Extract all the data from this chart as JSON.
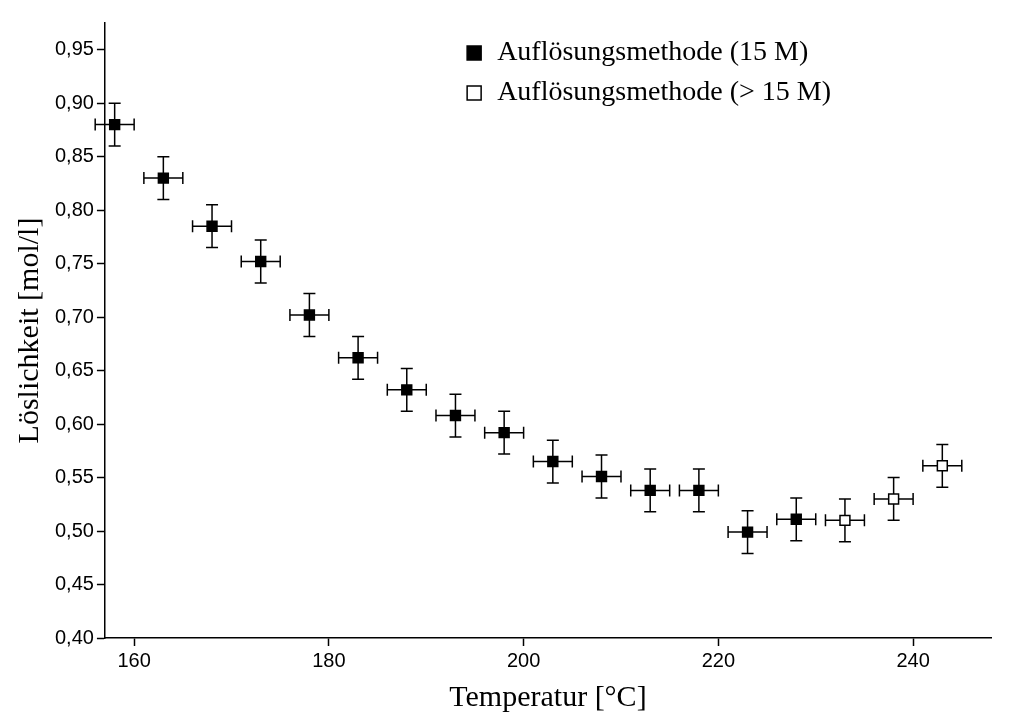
{
  "chart_data": {
    "type": "scatter",
    "xlabel": "Temperatur [°C]",
    "ylabel": "Löslichkeit [mol/l]",
    "xlim": [
      157,
      248
    ],
    "xticks": [
      160,
      180,
      200,
      220,
      240
    ],
    "ylim": [
      0.4,
      0.975
    ],
    "yticks": [
      {
        "value": 0.4,
        "label": "0,40"
      },
      {
        "value": 0.45,
        "label": "0,45"
      },
      {
        "value": 0.5,
        "label": "0,50"
      },
      {
        "value": 0.55,
        "label": "0,55"
      },
      {
        "value": 0.6,
        "label": "0,60"
      },
      {
        "value": 0.65,
        "label": "0,65"
      },
      {
        "value": 0.7,
        "label": "0,70"
      },
      {
        "value": 0.75,
        "label": "0,75"
      },
      {
        "value": 0.8,
        "label": "0,80"
      },
      {
        "value": 0.85,
        "label": "0,85"
      },
      {
        "value": 0.9,
        "label": "0,90"
      },
      {
        "value": 0.95,
        "label": "0,95"
      }
    ],
    "grid": false,
    "legend": "top right",
    "marker": "square",
    "series": [
      {
        "name": "Auflösungsmethode (15 M)",
        "color": "#000000",
        "x": [
          158,
          163,
          168,
          173,
          178,
          183,
          188,
          193,
          198,
          203,
          208,
          213,
          218,
          223,
          228
        ],
        "values": [
          0.88,
          0.83,
          0.785,
          0.752,
          0.702,
          0.662,
          0.632,
          0.608,
          0.592,
          0.565,
          0.551,
          0.538,
          0.538,
          0.499,
          0.511
        ],
        "errors": [
          0.02,
          0.02,
          0.02,
          0.02,
          0.02,
          0.02,
          0.02,
          0.02,
          0.02,
          0.02,
          0.02,
          0.02,
          0.02,
          0.02,
          0.02
        ],
        "xerrors": [
          2,
          2,
          2,
          2,
          2,
          2,
          2,
          2,
          2,
          2,
          2,
          2,
          2,
          2,
          2
        ]
      },
      {
        "name": "Auflösungsmethode (> 15 M)",
        "color": "#ffffff",
        "x": [
          233,
          238,
          243
        ],
        "values": [
          0.51,
          0.53,
          0.561
        ],
        "errors": [
          0.02,
          0.02,
          0.02
        ],
        "xerrors": [
          2,
          2,
          2
        ]
      }
    ]
  }
}
